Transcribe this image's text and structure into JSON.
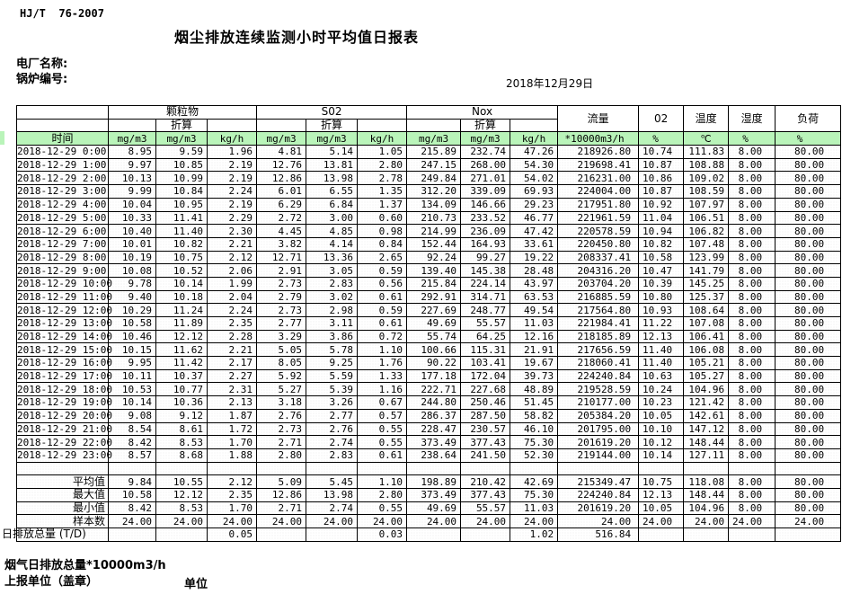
{
  "page": {
    "standard_code": "HJ/T  76-2007",
    "title": "烟尘排放连续监测小时平均值日报表",
    "plant_name_label": "电厂名称:",
    "boiler_no_label": "锅炉编号:",
    "report_date": "2018年12月29日"
  },
  "table": {
    "time_header": "时间",
    "converted_label": "折算",
    "groups": [
      {
        "label": "颗粒物",
        "units": [
          "mg/m3",
          "mg/m3",
          "kg/h"
        ]
      },
      {
        "label": "S02",
        "units": [
          "mg/m3",
          "mg/m3",
          "kg/h"
        ]
      },
      {
        "label": "Nox",
        "units": [
          "mg/m3",
          "mg/m3",
          "kg/h"
        ]
      }
    ],
    "single_columns": [
      {
        "label": "流量",
        "unit": "*10000m3/h"
      },
      {
        "label": "02",
        "unit": "%"
      },
      {
        "label": "温度",
        "unit": "℃"
      },
      {
        "label": "湿度",
        "unit": "%"
      },
      {
        "label": "负荷",
        "unit": "%"
      }
    ],
    "rows": [
      [
        "2018-12-29  0:00",
        "8.95",
        "9.59",
        "1.96",
        "4.81",
        "5.14",
        "1.05",
        "215.89",
        "232.74",
        "47.26",
        "218926.80",
        "10.74",
        "111.83",
        "8.00",
        "80.00"
      ],
      [
        "2018-12-29  1:00",
        "9.97",
        "10.85",
        "2.19",
        "12.76",
        "13.81",
        "2.80",
        "247.15",
        "268.00",
        "54.30",
        "219698.41",
        "10.87",
        "108.88",
        "8.00",
        "80.00"
      ],
      [
        "2018-12-29  2:00",
        "10.13",
        "10.99",
        "2.19",
        "12.86",
        "13.98",
        "2.78",
        "249.84",
        "271.01",
        "54.02",
        "216231.00",
        "10.86",
        "109.02",
        "8.00",
        "80.00"
      ],
      [
        "2018-12-29  3:00",
        "9.99",
        "10.84",
        "2.24",
        "6.01",
        "6.55",
        "1.35",
        "312.20",
        "339.09",
        "69.93",
        "224004.00",
        "10.87",
        "108.59",
        "8.00",
        "80.00"
      ],
      [
        "2018-12-29  4:00",
        "10.04",
        "10.95",
        "2.19",
        "6.29",
        "6.84",
        "1.37",
        "134.09",
        "146.66",
        "29.23",
        "217951.80",
        "10.92",
        "107.97",
        "8.00",
        "80.00"
      ],
      [
        "2018-12-29  5:00",
        "10.33",
        "11.41",
        "2.29",
        "2.72",
        "3.00",
        "0.60",
        "210.73",
        "233.52",
        "46.77",
        "221961.59",
        "11.04",
        "106.51",
        "8.00",
        "80.00"
      ],
      [
        "2018-12-29  6:00",
        "10.40",
        "11.40",
        "2.30",
        "4.45",
        "4.85",
        "0.98",
        "214.99",
        "236.09",
        "47.42",
        "220578.59",
        "10.94",
        "106.82",
        "8.00",
        "80.00"
      ],
      [
        "2018-12-29  7:00",
        "10.01",
        "10.82",
        "2.21",
        "3.82",
        "4.14",
        "0.84",
        "152.44",
        "164.93",
        "33.61",
        "220450.80",
        "10.82",
        "107.48",
        "8.00",
        "80.00"
      ],
      [
        "2018-12-29  8:00",
        "10.19",
        "10.75",
        "2.12",
        "12.71",
        "13.36",
        "2.65",
        "92.24",
        "99.27",
        "19.22",
        "208337.41",
        "10.58",
        "123.99",
        "8.00",
        "80.00"
      ],
      [
        "2018-12-29  9:00",
        "10.08",
        "10.52",
        "2.06",
        "2.91",
        "3.05",
        "0.59",
        "139.40",
        "145.38",
        "28.48",
        "204316.20",
        "10.47",
        "141.79",
        "8.00",
        "80.00"
      ],
      [
        "2018-12-29 10:00",
        "9.78",
        "10.14",
        "1.99",
        "2.73",
        "2.83",
        "0.56",
        "215.84",
        "224.14",
        "43.97",
        "203704.20",
        "10.39",
        "145.25",
        "8.00",
        "80.00"
      ],
      [
        "2018-12-29 11:00",
        "9.40",
        "10.18",
        "2.04",
        "2.79",
        "3.02",
        "0.61",
        "292.91",
        "314.71",
        "63.53",
        "216885.59",
        "10.80",
        "125.37",
        "8.00",
        "80.00"
      ],
      [
        "2018-12-29 12:00",
        "10.29",
        "11.24",
        "2.24",
        "2.73",
        "2.98",
        "0.59",
        "227.69",
        "248.77",
        "49.54",
        "217564.80",
        "10.93",
        "108.64",
        "8.00",
        "80.00"
      ],
      [
        "2018-12-29 13:00",
        "10.58",
        "11.89",
        "2.35",
        "2.77",
        "3.11",
        "0.61",
        "49.69",
        "55.57",
        "11.03",
        "221984.41",
        "11.22",
        "107.08",
        "8.00",
        "80.00"
      ],
      [
        "2018-12-29 14:00",
        "10.46",
        "12.12",
        "2.28",
        "3.29",
        "3.86",
        "0.72",
        "55.74",
        "64.25",
        "12.16",
        "218185.89",
        "12.13",
        "106.41",
        "8.00",
        "80.00"
      ],
      [
        "2018-12-29 15:00",
        "10.15",
        "11.62",
        "2.21",
        "5.05",
        "5.78",
        "1.10",
        "100.66",
        "115.31",
        "21.91",
        "217656.59",
        "11.40",
        "106.08",
        "8.00",
        "80.00"
      ],
      [
        "2018-12-29 16:00",
        "9.95",
        "11.42",
        "2.17",
        "8.05",
        "9.25",
        "1.76",
        "90.22",
        "103.41",
        "19.67",
        "218060.41",
        "11.40",
        "105.21",
        "8.00",
        "80.00"
      ],
      [
        "2018-12-29 17:00",
        "10.11",
        "10.37",
        "2.27",
        "5.92",
        "5.59",
        "1.33",
        "177.18",
        "172.04",
        "39.73",
        "224240.84",
        "10.63",
        "105.27",
        "8.00",
        "80.00"
      ],
      [
        "2018-12-29 18:00",
        "10.53",
        "10.77",
        "2.31",
        "5.27",
        "5.39",
        "1.16",
        "222.71",
        "227.68",
        "48.89",
        "219528.59",
        "10.24",
        "104.96",
        "8.00",
        "80.00"
      ],
      [
        "2018-12-29 19:00",
        "10.14",
        "10.36",
        "2.13",
        "3.18",
        "3.26",
        "0.67",
        "244.80",
        "250.46",
        "51.45",
        "210177.00",
        "10.23",
        "121.42",
        "8.00",
        "80.00"
      ],
      [
        "2018-12-29 20:00",
        "9.08",
        "9.12",
        "1.87",
        "2.76",
        "2.77",
        "0.57",
        "286.37",
        "287.50",
        "58.82",
        "205384.20",
        "10.05",
        "142.61",
        "8.00",
        "80.00"
      ],
      [
        "2018-12-29 21:00",
        "8.54",
        "8.61",
        "1.72",
        "2.73",
        "2.76",
        "0.55",
        "228.47",
        "230.57",
        "46.10",
        "201795.00",
        "10.10",
        "147.12",
        "8.00",
        "80.00"
      ],
      [
        "2018-12-29 22:00",
        "8.42",
        "8.53",
        "1.70",
        "2.71",
        "2.74",
        "0.55",
        "373.49",
        "377.43",
        "75.30",
        "201619.20",
        "10.12",
        "148.44",
        "8.00",
        "80.00"
      ],
      [
        "2018-12-29 23:00",
        "8.57",
        "8.68",
        "1.88",
        "2.80",
        "2.83",
        "0.61",
        "238.64",
        "241.50",
        "52.30",
        "219144.00",
        "10.14",
        "127.11",
        "8.00",
        "80.00"
      ]
    ],
    "summary": [
      {
        "label": "平均值",
        "values": [
          "9.84",
          "10.55",
          "2.12",
          "5.09",
          "5.45",
          "1.10",
          "198.89",
          "210.42",
          "42.69",
          "215349.47",
          "10.75",
          "118.08",
          "8.00",
          "80.00"
        ]
      },
      {
        "label": "最大值",
        "values": [
          "10.58",
          "12.12",
          "2.35",
          "12.86",
          "13.98",
          "2.80",
          "373.49",
          "377.43",
          "75.30",
          "224240.84",
          "12.13",
          "148.44",
          "8.00",
          "80.00"
        ]
      },
      {
        "label": "最小值",
        "values": [
          "8.42",
          "8.53",
          "1.70",
          "2.71",
          "2.74",
          "0.55",
          "49.69",
          "55.57",
          "11.03",
          "201619.20",
          "10.05",
          "104.96",
          "8.00",
          "80.00"
        ]
      },
      {
        "label": "样本数",
        "values": [
          "24.00",
          "24.00",
          "24.00",
          "24.00",
          "24.00",
          "24.00",
          "24.00",
          "24.00",
          "24.00",
          "24.00",
          "24.00",
          "24.00",
          "24.00",
          "24.00"
        ]
      },
      {
        "label": "日排放总量 (T/D)",
        "values": [
          "",
          "",
          "0.05",
          "",
          "",
          "0.03",
          "",
          "",
          "1.02",
          "516.84",
          "",
          "",
          "",
          ""
        ]
      }
    ],
    "colors": {
      "header_green": "#b9f4b9"
    }
  },
  "footer": {
    "flue_total_note": "烟气日排放总量*10000m3/h",
    "report_unit_label": "上报单位（盖章）",
    "unit_label": "单位"
  }
}
